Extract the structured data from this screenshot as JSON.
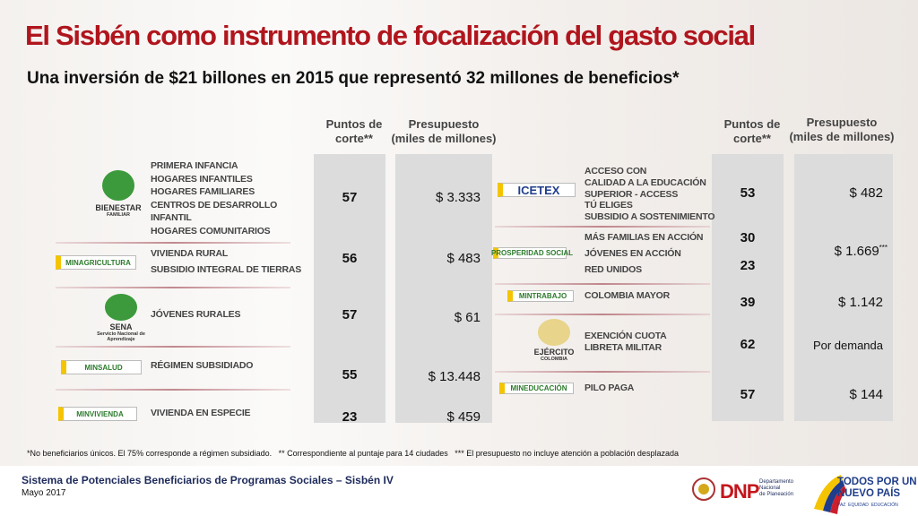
{
  "title": "El Sisbén como instrumento de focalización del gasto social",
  "subtitle": "Una inversión de $21 billones en 2015 que representó 32 millones de beneficios*",
  "left": {
    "headers": [
      "Puntos de\ncorte**",
      "Presupuesto\n(miles de millones)"
    ],
    "rows": [
      {
        "logo": [
          "BIENESTAR",
          "FAMILIAR"
        ],
        "programs": [
          "PRIMERA INFANCIA",
          "HOGARES INFANTILES",
          "HOGARES FAMILIARES",
          "CENTROS DE DESARROLLO",
          "INFANTIL",
          "HOGARES COMUNITARIOS"
        ],
        "cuts": [
          57
        ],
        "budget": "$ 3.333"
      },
      {
        "logo": [
          "MINAGRICULTURA"
        ],
        "programs": [
          "VIVIENDA RURAL",
          "SUBSIDIO INTEGRAL DE TIERRAS"
        ],
        "cuts": [
          56
        ],
        "budget": "$ 483"
      },
      {
        "logo": [
          "SENA",
          "Servicio Nacional de Aprendizaje"
        ],
        "programs": [
          "JÓVENES RURALES"
        ],
        "cuts": [
          57
        ],
        "budget": "$ 61"
      },
      {
        "logo": [
          "MINSALUD"
        ],
        "programs": [
          "RÉGIMEN SUBSIDIADO"
        ],
        "cuts": [
          55
        ],
        "budget": "$ 13.448"
      },
      {
        "logo": [
          "MINVIVIENDA"
        ],
        "programs": [
          "VIVIENDA EN ESPECIE"
        ],
        "cuts": [
          23
        ],
        "budget": "$ 459"
      }
    ]
  },
  "right": {
    "headers": [
      "Puntos de\ncorte**",
      "Presupuesto\n(miles de millones)"
    ],
    "rows": [
      {
        "logo": [
          "ICETEX"
        ],
        "programs": [
          "ACCESO CON",
          "CALIDAD A LA EDUCACIÓN",
          "SUPERIOR - ACCESS",
          "TÚ ELIGES",
          "SUBSIDIO A SOSTENIMIENTO"
        ],
        "cuts": [
          53
        ],
        "budget": "$ 482"
      },
      {
        "logo": [
          "PROSPERIDAD SOCIAL"
        ],
        "programs": [
          "MÁS FAMILIAS EN ACCIÓN",
          "JÓVENES EN ACCIÓN",
          "RED UNIDOS"
        ],
        "cuts": [
          30,
          23
        ],
        "budget": "$ 1.669",
        "budget_note": "***"
      },
      {
        "logo": [
          "MINTRABAJO"
        ],
        "programs": [
          "COLOMBIA MAYOR"
        ],
        "cuts": [
          39
        ],
        "budget": "$ 1.142"
      },
      {
        "logo": [
          "EJÉRCITO",
          "COLOMBIA"
        ],
        "programs": [
          "EXENCIÓN CUOTA",
          "LIBRETA MILITAR"
        ],
        "cuts": [
          62
        ],
        "budget": "Por demanda"
      },
      {
        "logo": [
          "MINEDUCACIÓN"
        ],
        "programs": [
          "PILO PAGA"
        ],
        "cuts": [
          57
        ],
        "budget": "$ 144"
      }
    ]
  },
  "footnote": "*No beneficiarios únicos. El 75% corresponde a régimen subsidiado.   ** Correspondiente al puntaje para 14 ciudades   *** El presupuesto no incluye atención a población desplazada",
  "footer": {
    "source": "Sistema de Potenciales Beneficiarios de Programas Sociales – Sisbén IV",
    "date": "Mayo 2017",
    "dnp": "DNP",
    "dnp_name": "Departamento\nNacional\nde Planeación",
    "slogan": "TODOS POR UN\nNUEVO PAÍS",
    "motto": "PAZ  EQUIDAD  EDUCACIÓN"
  }
}
